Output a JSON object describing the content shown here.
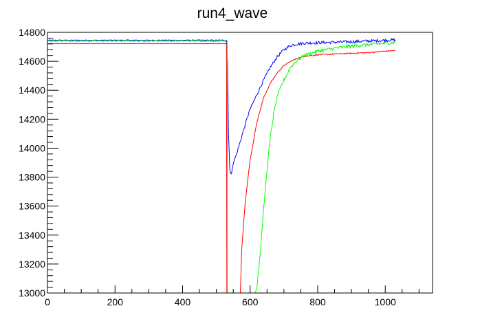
{
  "chart_data": {
    "type": "line",
    "title": "run4_wave",
    "xlabel": "",
    "ylabel": "",
    "xlim": [
      0,
      1140
    ],
    "ylim": [
      13000,
      14800
    ],
    "x_ticks": [
      0,
      200,
      400,
      600,
      800,
      1000
    ],
    "y_ticks": [
      13000,
      13200,
      13400,
      13600,
      13800,
      14000,
      14200,
      14400,
      14600,
      14800
    ],
    "grid": false,
    "series": [
      {
        "color": "#0000ff",
        "points": [
          [
            0,
            14745
          ],
          [
            530,
            14745
          ],
          [
            533,
            14600
          ],
          [
            536,
            14100
          ],
          [
            540,
            13850
          ],
          [
            545,
            13820
          ],
          [
            550,
            13900
          ],
          [
            560,
            13960
          ],
          [
            570,
            14040
          ],
          [
            580,
            14120
          ],
          [
            590,
            14200
          ],
          [
            600,
            14270
          ],
          [
            620,
            14370
          ],
          [
            640,
            14470
          ],
          [
            660,
            14560
          ],
          [
            680,
            14630
          ],
          [
            700,
            14680
          ],
          [
            720,
            14710
          ],
          [
            740,
            14720
          ],
          [
            760,
            14725
          ],
          [
            800,
            14728
          ],
          [
            850,
            14732
          ],
          [
            900,
            14735
          ],
          [
            950,
            14740
          ],
          [
            1000,
            14745
          ],
          [
            1030,
            14748
          ]
        ],
        "noise": 10
      },
      {
        "color": "#ff0000",
        "points": [
          [
            0,
            14722
          ],
          [
            530,
            14722
          ],
          [
            531,
            13000
          ],
          [
            571,
            13000
          ],
          [
            575,
            13300
          ],
          [
            585,
            13620
          ],
          [
            600,
            13920
          ],
          [
            620,
            14180
          ],
          [
            640,
            14350
          ],
          [
            660,
            14450
          ],
          [
            680,
            14520
          ],
          [
            700,
            14570
          ],
          [
            720,
            14600
          ],
          [
            740,
            14620
          ],
          [
            760,
            14635
          ],
          [
            800,
            14645
          ],
          [
            850,
            14650
          ],
          [
            900,
            14655
          ],
          [
            950,
            14660
          ],
          [
            1000,
            14670
          ],
          [
            1030,
            14675
          ]
        ],
        "noise": 4
      },
      {
        "color": "#00ff00",
        "points": [
          [
            0,
            14740
          ],
          [
            532,
            14740
          ],
          [
            533,
            13000
          ],
          [
            614,
            13000
          ],
          [
            620,
            13040
          ],
          [
            630,
            13280
          ],
          [
            640,
            13580
          ],
          [
            650,
            13850
          ],
          [
            660,
            14080
          ],
          [
            670,
            14240
          ],
          [
            680,
            14360
          ],
          [
            700,
            14470
          ],
          [
            720,
            14560
          ],
          [
            740,
            14610
          ],
          [
            760,
            14640
          ],
          [
            800,
            14670
          ],
          [
            850,
            14690
          ],
          [
            900,
            14705
          ],
          [
            950,
            14715
          ],
          [
            1000,
            14725
          ],
          [
            1030,
            14730
          ]
        ],
        "noise": 12
      }
    ]
  }
}
